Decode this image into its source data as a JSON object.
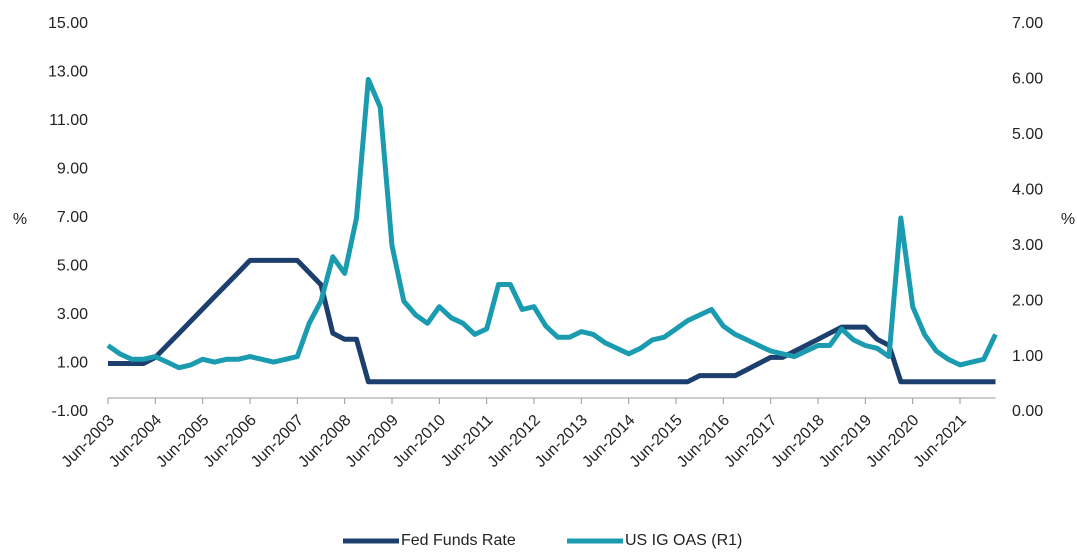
{
  "chart_data": {
    "type": "line",
    "categories": [
      "Jun-2003",
      null,
      null,
      null,
      "Jun-2004",
      null,
      null,
      null,
      "Jun-2005",
      null,
      null,
      null,
      "Jun-2006",
      null,
      null,
      null,
      "Jun-2007",
      null,
      null,
      null,
      "Jun-2008",
      null,
      null,
      null,
      "Jun-2009",
      null,
      null,
      null,
      "Jun-2010",
      null,
      null,
      null,
      "Jun-2011",
      null,
      null,
      null,
      "Jun-2012",
      null,
      null,
      null,
      "Jun-2013",
      null,
      null,
      null,
      "Jun-2014",
      null,
      null,
      null,
      "Jun-2015",
      null,
      null,
      null,
      "Jun-2016",
      null,
      null,
      null,
      "Jun-2017",
      null,
      null,
      null,
      "Jun-2018",
      null,
      null,
      null,
      "Jun-2019",
      null,
      null,
      null,
      "Jun-2020",
      null,
      null,
      null,
      "Jun-2021",
      null,
      null,
      null
    ],
    "series": [
      {
        "name": "Fed Funds Rate",
        "color": "#1c3f6e",
        "axis": "y",
        "values": [
          1,
          1,
          1,
          1,
          1.25,
          1.75,
          2.25,
          2.75,
          3.25,
          3.75,
          4.25,
          4.75,
          5.25,
          5.25,
          5.25,
          5.25,
          5.25,
          4.75,
          4.25,
          2.25,
          2,
          2,
          0.25,
          0.25,
          0.25,
          0.25,
          0.25,
          0.25,
          0.25,
          0.25,
          0.25,
          0.25,
          0.25,
          0.25,
          0.25,
          0.25,
          0.25,
          0.25,
          0.25,
          0.25,
          0.25,
          0.25,
          0.25,
          0.25,
          0.25,
          0.25,
          0.25,
          0.25,
          0.25,
          0.25,
          0.5,
          0.5,
          0.5,
          0.5,
          0.75,
          1,
          1.25,
          1.25,
          1.5,
          1.75,
          2,
          2.25,
          2.5,
          2.5,
          2.5,
          2,
          1.75,
          0.25,
          0.25,
          0.25,
          0.25,
          0.25,
          0.25,
          0.25,
          0.25,
          0.25
        ]
      },
      {
        "name": "US IG OAS (R1)",
        "color": "#1a9bb0",
        "axis": "y2",
        "values": [
          1.2,
          1.05,
          0.95,
          0.95,
          1,
          0.9,
          0.8,
          0.85,
          0.95,
          0.9,
          0.95,
          0.95,
          1,
          0.95,
          0.9,
          0.95,
          1,
          1.6,
          2,
          2.8,
          2.5,
          3.5,
          6,
          5.5,
          3,
          2,
          1.75,
          1.6,
          1.9,
          1.7,
          1.6,
          1.4,
          1.5,
          2.3,
          2.3,
          1.85,
          1.9,
          1.55,
          1.35,
          1.35,
          1.45,
          1.4,
          1.25,
          1.15,
          1.05,
          1.15,
          1.3,
          1.35,
          1.5,
          1.65,
          1.75,
          1.85,
          1.55,
          1.4,
          1.3,
          1.2,
          1.1,
          1.05,
          1,
          1.1,
          1.2,
          1.2,
          1.5,
          1.3,
          1.2,
          1.15,
          1,
          3.5,
          1.9,
          1.4,
          1.1,
          0.95,
          0.85,
          0.9,
          0.95,
          1.4
        ]
      }
    ],
    "ylabel": "%",
    "y2label": "%",
    "ylim": [
      -1,
      15
    ],
    "yticks": [
      {
        "value": -1,
        "label": "-1.00"
      },
      {
        "value": 1,
        "label": "1.00"
      },
      {
        "value": 3,
        "label": "3.00"
      },
      {
        "value": 5,
        "label": "5.00"
      },
      {
        "value": 7,
        "label": "7.00"
      },
      {
        "value": 9,
        "label": "9.00"
      },
      {
        "value": 11,
        "label": "11.00"
      },
      {
        "value": 13,
        "label": "13.00"
      },
      {
        "value": 15,
        "label": "15.00"
      }
    ],
    "y2lim": [
      0,
      7
    ],
    "y2ticks": [
      {
        "value": 0,
        "label": "0.00"
      },
      {
        "value": 1,
        "label": "1.00"
      },
      {
        "value": 2,
        "label": "2.00"
      },
      {
        "value": 3,
        "label": "3.00"
      },
      {
        "value": 4,
        "label": "4.00"
      },
      {
        "value": 5,
        "label": "5.00"
      },
      {
        "value": 6,
        "label": "6.00"
      },
      {
        "value": 7,
        "label": "7.00"
      }
    ],
    "legend": "bottom",
    "grid": false
  }
}
